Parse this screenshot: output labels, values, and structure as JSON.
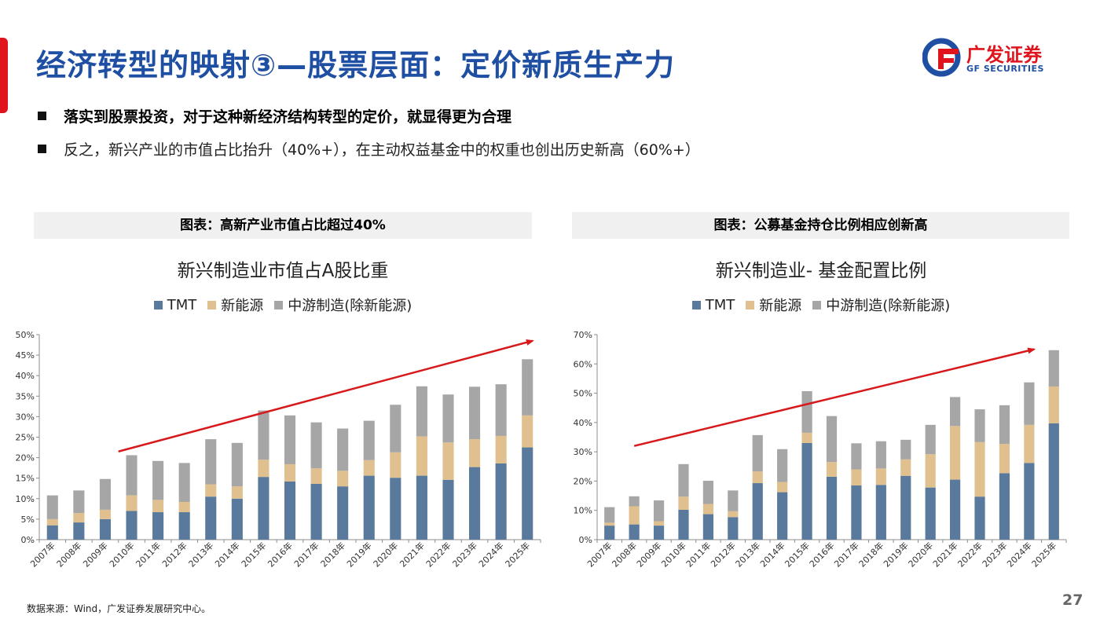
{
  "header": {
    "title": "经济转型的映射③—股票层面：定价新质生产力",
    "logo_cn": "广发证券",
    "logo_en": "GF SECURITIES"
  },
  "bullets": [
    "落实到股票投资，对于这种新经济结构转型的定价，就显得更为合理",
    "反之，新兴产业的市值占比抬升（40%+），在主动权益基金中的权重也创出历史新高（60%+）"
  ],
  "colors": {
    "tmt": "#597a9c",
    "new_energy": "#dfc08e",
    "midstream": "#a6a6a6",
    "trend_arrow": "#d7191c",
    "title_blue": "#1e4fa3",
    "accent_red": "#e0141c"
  },
  "chart_data": [
    {
      "type": "bar",
      "stacked": true,
      "header": "图表：高新产业市值占比超过40%",
      "title": "新兴制造业市值占A股比重",
      "categories": [
        "2007年",
        "2008年",
        "2009年",
        "2010年",
        "2011年",
        "2012年",
        "2013年",
        "2014年",
        "2015年",
        "2016年",
        "2017年",
        "2018年",
        "2019年",
        "2020年",
        "2021年",
        "2022年",
        "2023年",
        "2024年",
        "2025年"
      ],
      "series": [
        {
          "name": "TMT",
          "values": [
            3.5,
            4.2,
            5.0,
            7.0,
            6.7,
            6.7,
            10.5,
            10.0,
            15.3,
            14.2,
            13.6,
            13.0,
            15.6,
            15.1,
            15.6,
            14.6,
            17.7,
            18.6,
            22.5
          ]
        },
        {
          "name": "新能源",
          "values": [
            1.5,
            2.3,
            2.3,
            3.8,
            3.0,
            2.5,
            3.0,
            3.0,
            4.2,
            4.2,
            3.8,
            3.8,
            3.8,
            6.2,
            9.6,
            9.1,
            6.8,
            6.7,
            7.8
          ]
        },
        {
          "name": "中游制造(除新能源)",
          "values": [
            5.8,
            5.5,
            7.5,
            9.8,
            9.5,
            9.5,
            11.0,
            10.6,
            12.0,
            11.9,
            11.2,
            10.3,
            9.6,
            11.6,
            12.2,
            11.7,
            12.8,
            12.6,
            13.7
          ]
        }
      ],
      "y_ticks": [
        "0%",
        "5%",
        "10%",
        "15%",
        "20%",
        "25%",
        "30%",
        "35%",
        "40%",
        "45%",
        "50%"
      ],
      "ylim": [
        0,
        50
      ],
      "legend": "top",
      "grid": false,
      "annotation": "upward trend arrow from 2010年 to 2025年"
    },
    {
      "type": "bar",
      "stacked": true,
      "header": "图表：公募基金持仓比例相应创新高",
      "title": "新兴制造业- 基金配置比例",
      "categories": [
        "2007年",
        "2008年",
        "2009年",
        "2010年",
        "2011年",
        "2012年",
        "2013年",
        "2014年",
        "2015年",
        "2016年",
        "2017年",
        "2018年",
        "2019年",
        "2020年",
        "2021年",
        "2022年",
        "2023年",
        "2024年",
        "2025年"
      ],
      "series": [
        {
          "name": "TMT",
          "values": [
            4.8,
            5.2,
            4.8,
            10.2,
            8.7,
            7.7,
            19.3,
            16.2,
            33.0,
            21.5,
            18.5,
            18.7,
            21.8,
            17.8,
            20.5,
            14.7,
            22.7,
            26.2,
            39.7
          ]
        },
        {
          "name": "新能源",
          "values": [
            1.0,
            6.2,
            1.5,
            4.5,
            3.5,
            2.0,
            4.0,
            3.5,
            3.5,
            5.0,
            5.5,
            5.6,
            5.6,
            11.4,
            18.3,
            18.6,
            10.0,
            13.0,
            12.6
          ]
        },
        {
          "name": "中游制造(除新能源)",
          "values": [
            5.3,
            3.4,
            7.1,
            11.1,
            7.9,
            7.1,
            12.4,
            11.2,
            14.2,
            15.7,
            8.9,
            9.3,
            6.7,
            10.0,
            9.9,
            11.2,
            13.2,
            14.5,
            12.4
          ]
        }
      ],
      "y_ticks": [
        "0%",
        "10%",
        "20%",
        "30%",
        "40%",
        "50%",
        "60%",
        "70%"
      ],
      "ylim": [
        0,
        70
      ],
      "legend": "top",
      "grid": false,
      "annotation": "upward trend arrow from 2008年 to 2024年"
    }
  ],
  "footer": {
    "source": "数据来源：Wind，广发证券发展研究中心。",
    "page_number": "27"
  }
}
